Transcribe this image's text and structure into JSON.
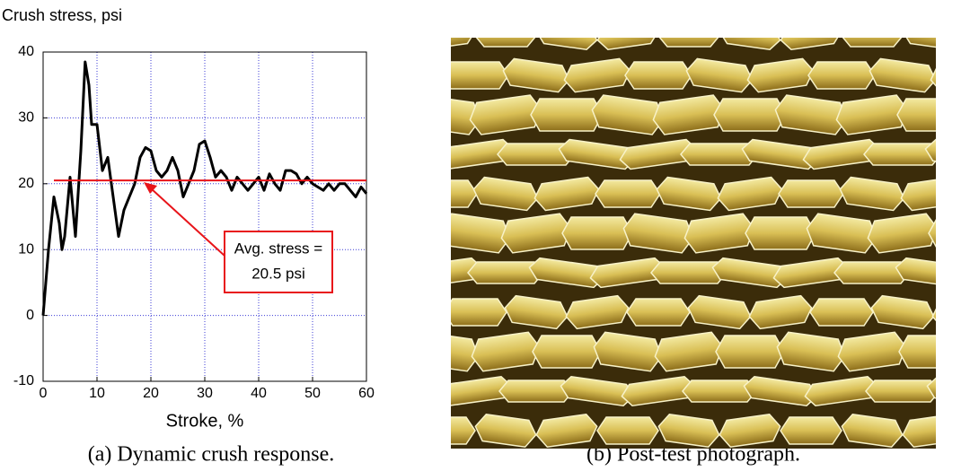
{
  "chart_data": {
    "type": "line",
    "y_axis_label": "Crush stress, psi",
    "x_axis_label": "Stroke, %",
    "x": [
      0,
      1,
      2,
      3,
      3.5,
      4,
      5,
      6,
      7,
      7.8,
      8.5,
      9,
      10,
      11,
      12,
      13,
      14,
      15,
      16,
      17,
      18,
      19,
      20,
      21,
      22,
      23,
      24,
      25,
      26,
      27,
      28,
      29,
      30,
      31,
      32,
      33,
      34,
      35,
      36,
      37,
      38,
      39,
      40,
      41,
      42,
      43,
      44,
      45,
      46,
      47,
      48,
      49,
      50,
      51,
      52,
      53,
      54,
      55,
      56,
      57,
      58,
      59,
      60
    ],
    "series": [
      {
        "color": "#000000",
        "values": [
          0,
          10,
          18,
          14,
          10,
          12,
          21,
          12,
          25,
          38.5,
          35,
          29,
          29,
          22,
          24,
          18,
          12,
          16,
          18,
          20,
          24,
          25.5,
          25,
          22,
          21,
          22,
          24,
          22,
          18,
          20,
          22,
          26,
          26.5,
          24,
          21,
          22,
          21,
          19,
          21,
          20,
          19,
          20,
          21,
          19,
          21.5,
          20,
          19,
          22,
          22,
          21.5,
          20,
          21,
          20,
          19.5,
          19,
          20,
          19,
          20,
          20,
          19,
          18,
          19.5,
          18.5
        ]
      }
    ],
    "average": {
      "value": 20.5,
      "x": [
        2,
        60
      ],
      "color": "#e8141a",
      "label": [
        "Avg. stress =",
        "20.5 psi"
      ]
    },
    "xlim": [
      0,
      60
    ],
    "xticks": [
      0,
      10,
      20,
      30,
      40,
      50,
      60
    ],
    "ylim": [
      -10,
      40
    ],
    "yticks": [
      -10,
      0,
      10,
      20,
      30,
      40
    ],
    "grid": true,
    "grid_color": "#3b3bd6"
  },
  "captions": [
    "(a) Dynamic crush response.",
    "(b) Post-test photograph."
  ]
}
